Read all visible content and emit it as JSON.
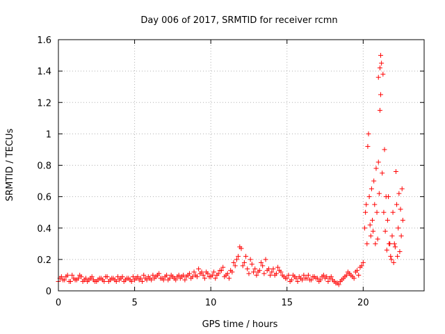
{
  "chart_data": {
    "type": "scatter",
    "title": "Day 006 of 2017, SRMTID for receiver rcmn",
    "xlabel": "GPS time / hours",
    "ylabel": "SRMTID / TECUs",
    "xlim": [
      0,
      24
    ],
    "ylim": [
      0,
      1.6
    ],
    "x_ticks": [
      "0",
      "5",
      "10",
      "15",
      "20"
    ],
    "y_ticks": [
      "0",
      "0.2",
      "0.4",
      "0.6",
      "0.8",
      "1",
      "1.2",
      "1.4",
      "1.6"
    ],
    "grid": true,
    "marker": "+",
    "color": "#ff0000",
    "series": [
      {
        "name": "SRMTID",
        "x": [
          0.0,
          0.2,
          0.4,
          0.6,
          0.8,
          1.0,
          1.2,
          1.4,
          1.6,
          1.8,
          2.0,
          2.2,
          2.4,
          2.6,
          2.8,
          3.0,
          3.2,
          3.4,
          3.6,
          3.8,
          4.0,
          4.2,
          4.4,
          4.6,
          4.8,
          5.0,
          5.2,
          5.4,
          5.6,
          5.8,
          6.0,
          6.2,
          6.4,
          6.6,
          6.8,
          7.0,
          7.2,
          7.4,
          7.6,
          7.8,
          8.0,
          8.2,
          8.4,
          8.6,
          8.8,
          9.0,
          9.2,
          9.4,
          9.6,
          9.8,
          10.0,
          10.2,
          10.4,
          10.6,
          10.8,
          11.0,
          11.2,
          11.4,
          11.6,
          11.8,
          12.0,
          12.2,
          12.4,
          12.6,
          12.8,
          13.0,
          13.2,
          13.4,
          13.6,
          13.8,
          14.0,
          14.2,
          14.4,
          14.6,
          14.8,
          15.0,
          15.2,
          15.4,
          15.6,
          15.8,
          16.0,
          16.2,
          16.4,
          16.6,
          16.8,
          17.0,
          17.2,
          17.4,
          17.6,
          17.8,
          18.0,
          18.2,
          18.4,
          18.6,
          18.8,
          19.0,
          19.2,
          19.4,
          19.6,
          19.8,
          20.0,
          20.1,
          20.2,
          20.3,
          20.4,
          20.5,
          20.6,
          20.7,
          20.8,
          20.9,
          21.0,
          21.05,
          21.1,
          21.15,
          21.2,
          21.3,
          21.4,
          21.5,
          21.6,
          21.7,
          21.8,
          21.9,
          22.0,
          22.1,
          22.2,
          22.3,
          22.4,
          22.5,
          22.6,
          0.1,
          0.3,
          0.5,
          0.7,
          0.9,
          1.1,
          1.3,
          1.5,
          1.7,
          1.9,
          2.1,
          2.3,
          2.5,
          2.7,
          2.9,
          3.1,
          3.3,
          3.5,
          3.7,
          3.9,
          4.1,
          4.3,
          4.5,
          4.7,
          4.9,
          5.1,
          5.3,
          5.5,
          5.7,
          5.9,
          6.1,
          6.3,
          6.5,
          6.7,
          6.9,
          7.1,
          7.3,
          7.5,
          7.7,
          7.9,
          8.1,
          8.3,
          8.5,
          8.7,
          8.9,
          9.1,
          9.3,
          9.5,
          9.7,
          9.9,
          10.1,
          10.3,
          10.5,
          10.7,
          10.9,
          11.1,
          11.3,
          11.5,
          11.7,
          11.9,
          12.1,
          12.3,
          12.5,
          12.7,
          12.9,
          13.1,
          13.3,
          13.5,
          13.7,
          13.9,
          14.1,
          14.3,
          14.5,
          14.7,
          14.9,
          15.1,
          15.3,
          15.5,
          15.7,
          15.9,
          16.1,
          16.3,
          16.5,
          16.7,
          16.9,
          17.1,
          17.3,
          17.5,
          17.7,
          17.9,
          18.1,
          18.3,
          18.5,
          18.7,
          18.9,
          19.1,
          19.3,
          19.5,
          19.7,
          19.9,
          20.15,
          20.25,
          20.35,
          20.45,
          20.55,
          20.65,
          20.75,
          20.85,
          20.95,
          21.0,
          21.1,
          21.15,
          21.25,
          21.35,
          21.45,
          21.55,
          21.65,
          21.75,
          21.85,
          21.95,
          22.05,
          22.15,
          22.25,
          22.35,
          22.45,
          22.55
        ],
        "y": [
          0.06,
          0.09,
          0.07,
          0.1,
          0.06,
          0.08,
          0.07,
          0.1,
          0.06,
          0.08,
          0.07,
          0.09,
          0.06,
          0.07,
          0.08,
          0.06,
          0.09,
          0.07,
          0.08,
          0.06,
          0.07,
          0.09,
          0.07,
          0.08,
          0.06,
          0.07,
          0.09,
          0.08,
          0.1,
          0.07,
          0.08,
          0.1,
          0.09,
          0.11,
          0.08,
          0.09,
          0.07,
          0.1,
          0.08,
          0.09,
          0.08,
          0.1,
          0.09,
          0.11,
          0.09,
          0.1,
          0.14,
          0.12,
          0.08,
          0.11,
          0.09,
          0.12,
          0.1,
          0.13,
          0.15,
          0.1,
          0.08,
          0.12,
          0.16,
          0.22,
          0.27,
          0.18,
          0.14,
          0.2,
          0.12,
          0.1,
          0.13,
          0.16,
          0.2,
          0.14,
          0.12,
          0.1,
          0.15,
          0.12,
          0.09,
          0.08,
          0.06,
          0.1,
          0.08,
          0.09,
          0.07,
          0.08,
          0.1,
          0.07,
          0.09,
          0.08,
          0.07,
          0.1,
          0.09,
          0.08,
          0.07,
          0.05,
          0.04,
          0.07,
          0.09,
          0.12,
          0.1,
          0.08,
          0.13,
          0.15,
          0.18,
          0.4,
          0.55,
          0.92,
          0.6,
          0.35,
          0.45,
          0.7,
          0.3,
          0.5,
          0.82,
          0.62,
          1.15,
          1.25,
          1.45,
          1.38,
          0.9,
          0.6,
          0.45,
          0.3,
          0.22,
          0.35,
          0.18,
          0.28,
          0.55,
          0.4,
          0.25,
          0.35,
          0.45,
          0.08,
          0.07,
          0.09,
          0.06,
          0.1,
          0.07,
          0.08,
          0.09,
          0.07,
          0.06,
          0.08,
          0.07,
          0.06,
          0.08,
          0.07,
          0.09,
          0.06,
          0.08,
          0.07,
          0.09,
          0.08,
          0.06,
          0.08,
          0.07,
          0.09,
          0.08,
          0.07,
          0.06,
          0.08,
          0.09,
          0.07,
          0.08,
          0.1,
          0.08,
          0.07,
          0.1,
          0.08,
          0.09,
          0.07,
          0.1,
          0.09,
          0.07,
          0.1,
          0.08,
          0.12,
          0.09,
          0.11,
          0.1,
          0.12,
          0.09,
          0.1,
          0.08,
          0.11,
          0.13,
          0.09,
          0.11,
          0.13,
          0.18,
          0.2,
          0.28,
          0.16,
          0.22,
          0.11,
          0.17,
          0.14,
          0.12,
          0.18,
          0.11,
          0.13,
          0.1,
          0.14,
          0.11,
          0.13,
          0.1,
          0.08,
          0.1,
          0.07,
          0.09,
          0.06,
          0.08,
          0.1,
          0.08,
          0.07,
          0.09,
          0.08,
          0.06,
          0.09,
          0.08,
          0.06,
          0.09,
          0.06,
          0.05,
          0.06,
          0.08,
          0.1,
          0.11,
          0.09,
          0.12,
          0.1,
          0.16,
          0.5,
          0.3,
          1.0,
          0.42,
          0.65,
          0.38,
          0.55,
          0.78,
          0.33,
          1.36,
          1.42,
          1.5,
          0.75,
          0.5,
          0.38,
          0.26,
          0.6,
          0.3,
          0.2,
          0.5,
          0.3,
          0.76,
          0.22,
          0.62,
          0.52,
          0.65
        ]
      }
    ]
  }
}
